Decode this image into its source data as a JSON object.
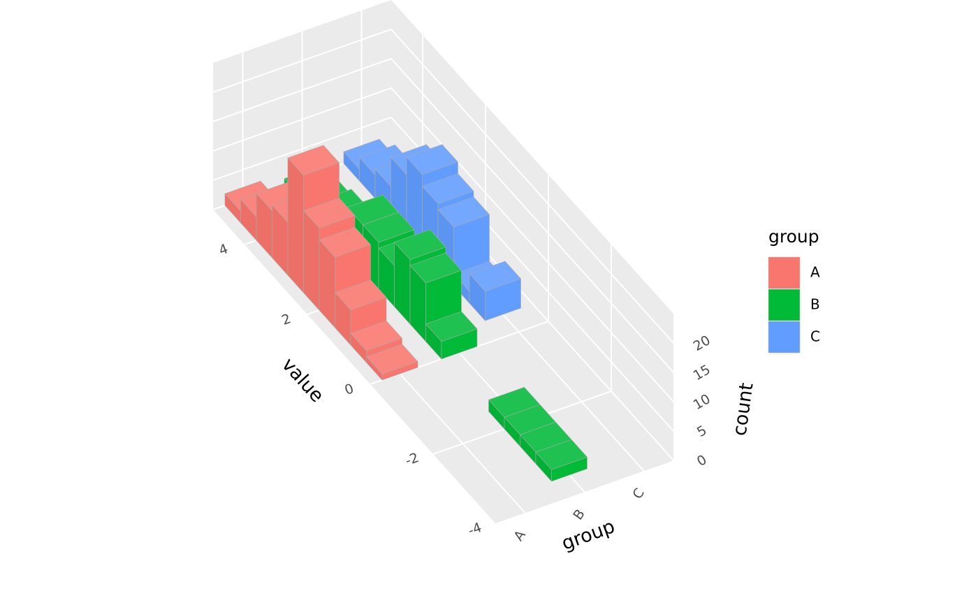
{
  "chart_data": {
    "type": "histogram3d",
    "x_label": "value",
    "group_label": "group",
    "z_label": "count",
    "legend_title": "group",
    "bins": [
      -4,
      -3.5,
      -3,
      -2.5,
      -2,
      -1.5,
      -1,
      -0.5,
      0,
      0.5,
      1,
      1.5,
      2,
      2.5,
      3,
      3.5,
      4,
      4.5,
      5
    ],
    "categories": [
      "A",
      "B",
      "C"
    ],
    "series": [
      {
        "name": "A",
        "color": "#F8766D",
        "values": [
          null,
          null,
          null,
          null,
          null,
          null,
          null,
          null,
          1,
          2,
          6,
          12,
          14,
          20,
          9,
          8,
          4,
          2
        ]
      },
      {
        "name": "B",
        "color": "#00BA38",
        "values": [
          null,
          2,
          2,
          2,
          2,
          null,
          null,
          null,
          3,
          10,
          11,
          7,
          8,
          8,
          4,
          3,
          2,
          1
        ]
      },
      {
        "name": "C",
        "color": "#619CFF",
        "values": [
          null,
          null,
          null,
          null,
          null,
          null,
          null,
          null,
          null,
          5,
          2,
          10,
          11,
          13,
          10,
          5,
          4,
          2
        ]
      }
    ],
    "xlim": [
      -4,
      5
    ],
    "xticks": [
      -4,
      -2,
      0,
      2,
      4
    ],
    "zlim": [
      0,
      25
    ],
    "zticks": [
      0,
      5,
      10,
      15,
      20
    ],
    "legend": "right"
  }
}
